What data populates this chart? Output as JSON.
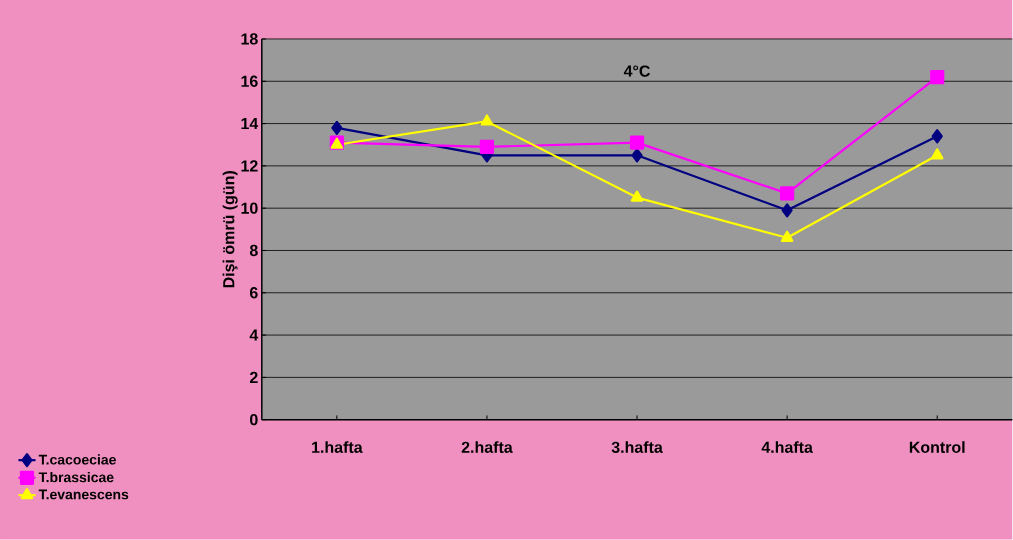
{
  "chart_data": {
    "type": "line",
    "title": "4°C",
    "ylabel": "Dişi ömrü (gün)",
    "categories": [
      "1.hafta",
      "2.hafta",
      "3.hafta",
      "4.hafta",
      "Kontrol"
    ],
    "series": [
      {
        "name": "T.cacoeciae",
        "color": "#000080",
        "marker": "diamond",
        "values": [
          13.8,
          12.5,
          12.5,
          9.9,
          13.4
        ]
      },
      {
        "name": "T.brassicae",
        "color": "#ff00ff",
        "marker": "square",
        "values": [
          13.1,
          12.9,
          13.1,
          10.7,
          16.2
        ]
      },
      {
        "name": "T.evanescens",
        "color": "#ffff00",
        "marker": "triangle",
        "values": [
          13.0,
          14.1,
          10.5,
          8.6,
          12.5
        ]
      }
    ],
    "ylim": [
      0,
      18
    ],
    "yticks": [
      0,
      2,
      4,
      6,
      8,
      10,
      12,
      14,
      16,
      18
    ],
    "grid": "y",
    "legend": "bottom left",
    "line_style": "solid"
  }
}
